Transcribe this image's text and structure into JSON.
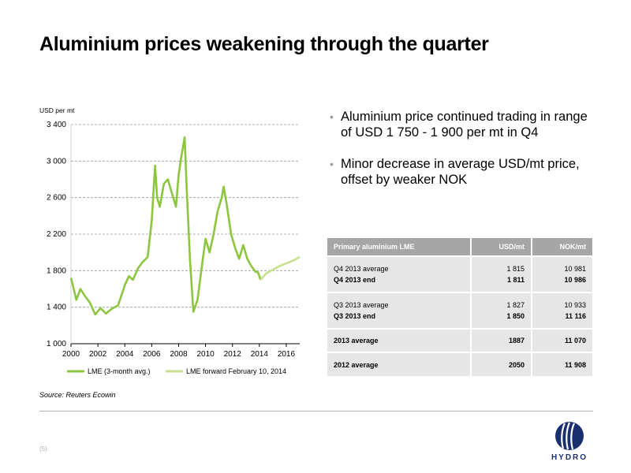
{
  "title": "Aluminium prices weakening through the quarter",
  "colors": {
    "lme": "#8cc63f",
    "forward": "#c6e08f",
    "table_header": "#a6a6a6",
    "table_row": "#e6e6e6",
    "logo": "#1a2f6e"
  },
  "bullets": [
    "Aluminium price continued trading in range of USD 1 750 - 1 900 per mt in Q4",
    "Minor decrease in average USD/mt price, offset by weaker NOK"
  ],
  "table": {
    "headers": [
      "Primary aluminium LME",
      "USD/mt",
      "NOK/mt"
    ],
    "groups": [
      {
        "lines": [
          {
            "label": "Q4 2013 average",
            "usd": "1 815",
            "nok": "10 981",
            "bold": false
          },
          {
            "label": "Q4 2013 end",
            "usd": "1 811",
            "nok": "10 986",
            "bold": true
          }
        ]
      },
      {
        "lines": [
          {
            "label": "Q3 2013 average",
            "usd": "1 827",
            "nok": "10 933",
            "bold": false
          },
          {
            "label": "Q3 2013 end",
            "usd": "1 850",
            "nok": "11 116",
            "bold": true
          }
        ]
      },
      {
        "lines": [
          {
            "label": "2013 average",
            "usd": "1887",
            "nok": "11 070",
            "bold": true
          }
        ]
      },
      {
        "lines": [
          {
            "label": "2012 average",
            "usd": "2050",
            "nok": "11 908",
            "bold": true
          }
        ]
      }
    ]
  },
  "source": "Source: Reuters Ecowin",
  "page_number": "(5)",
  "logo_text": "HYDRO",
  "chart_data": {
    "type": "line",
    "ylabel": "USD per mt",
    "ylim": [
      1000,
      3400
    ],
    "yticks": [
      1000,
      1400,
      1800,
      2200,
      2600,
      3000,
      3400
    ],
    "ytick_labels": [
      "1 000",
      "1 400",
      "1 800",
      "2 200",
      "2 600",
      "3 000",
      "3 400"
    ],
    "xlim": [
      2000,
      2017
    ],
    "xticks": [
      2000,
      2002,
      2004,
      2006,
      2008,
      2010,
      2012,
      2014,
      2016
    ],
    "xtick_labels": [
      "2000",
      "2002",
      "2004",
      "2006",
      "2008",
      "2010",
      "2012",
      "2014",
      "2016"
    ],
    "grid": "horizontal dashed",
    "legend": "bottom",
    "series": [
      {
        "name": "LME (3-month avg.)",
        "x": [
          2000.0,
          2000.2,
          2000.4,
          2000.7,
          2001.0,
          2001.4,
          2001.8,
          2002.2,
          2002.6,
          2003.0,
          2003.5,
          2004.0,
          2004.3,
          2004.6,
          2005.0,
          2005.3,
          2005.7,
          2006.0,
          2006.25,
          2006.4,
          2006.6,
          2006.9,
          2007.2,
          2007.5,
          2007.8,
          2008.0,
          2008.2,
          2008.45,
          2008.6,
          2008.85,
          2009.1,
          2009.4,
          2009.7,
          2010.0,
          2010.3,
          2010.6,
          2010.9,
          2011.2,
          2011.35,
          2011.6,
          2011.9,
          2012.2,
          2012.5,
          2012.8,
          2013.1,
          2013.4,
          2013.7,
          2013.9,
          2014.1
        ],
        "y": [
          1720,
          1600,
          1480,
          1600,
          1530,
          1450,
          1320,
          1390,
          1330,
          1380,
          1420,
          1640,
          1740,
          1700,
          1830,
          1890,
          1950,
          2350,
          2950,
          2600,
          2500,
          2750,
          2800,
          2650,
          2500,
          2850,
          3050,
          3260,
          2700,
          1900,
          1350,
          1480,
          1820,
          2150,
          2000,
          2200,
          2450,
          2600,
          2720,
          2500,
          2200,
          2050,
          1930,
          2080,
          1930,
          1850,
          1790,
          1780,
          1700
        ]
      },
      {
        "name": "LME forward February 10, 2014",
        "x": [
          2014.1,
          2014.5,
          2015.0,
          2015.5,
          2016.0,
          2016.5,
          2017.0
        ],
        "y": [
          1700,
          1770,
          1810,
          1850,
          1880,
          1910,
          1950
        ]
      }
    ]
  }
}
